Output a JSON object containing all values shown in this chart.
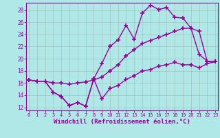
{
  "background_color": "#b0e8e8",
  "grid_color": "#999999",
  "line_color": "#990099",
  "marker": "+",
  "markersize": 4,
  "markeredgewidth": 1.2,
  "linewidth": 1.0,
  "xlabel": "Windchill (Refroidissement éolien,°C)",
  "xlabel_fontsize": 6.5,
  "ytick_values": [
    12,
    14,
    16,
    18,
    20,
    22,
    24,
    26,
    28
  ],
  "xtick_values": [
    0,
    1,
    2,
    3,
    4,
    5,
    6,
    7,
    8,
    9,
    10,
    11,
    12,
    13,
    14,
    15,
    16,
    17,
    18,
    19,
    20,
    21,
    22,
    23
  ],
  "xlim": [
    -0.3,
    23.3
  ],
  "ylim": [
    11.5,
    29.2
  ],
  "line1_x": [
    0,
    1,
    2,
    3,
    4,
    5,
    6,
    7,
    8,
    9,
    10,
    11,
    12,
    13,
    14,
    15,
    16,
    17,
    18,
    19,
    20,
    21,
    22,
    23
  ],
  "line1_y": [
    16.5,
    16.3,
    16.3,
    14.5,
    13.8,
    12.3,
    12.8,
    12.2,
    16.7,
    13.4,
    15.1,
    15.6,
    16.6,
    17.2,
    18.0,
    18.2,
    18.8,
    19.0,
    19.4,
    19.0,
    19.0,
    18.5,
    19.2,
    19.5
  ],
  "line2_x": [
    0,
    1,
    2,
    3,
    4,
    5,
    6,
    7,
    8,
    9,
    10,
    11,
    12,
    13,
    14,
    15,
    16,
    17,
    18,
    19,
    20,
    21,
    22,
    23
  ],
  "line2_y": [
    16.5,
    16.3,
    16.3,
    16.0,
    16.0,
    15.8,
    16.0,
    16.2,
    16.5,
    17.0,
    18.0,
    19.0,
    20.5,
    21.5,
    22.5,
    23.0,
    23.5,
    24.0,
    24.5,
    25.0,
    25.0,
    24.5,
    19.5,
    19.5
  ],
  "line3_x": [
    0,
    1,
    2,
    3,
    4,
    5,
    6,
    7,
    8,
    9,
    10,
    11,
    12,
    13,
    14,
    15,
    16,
    17,
    18,
    19,
    20,
    21,
    22,
    23
  ],
  "line3_y": [
    16.5,
    16.3,
    16.3,
    14.5,
    13.8,
    12.3,
    12.8,
    12.2,
    16.7,
    19.2,
    22.0,
    23.1,
    25.5,
    23.2,
    27.5,
    28.8,
    28.1,
    28.4,
    26.8,
    26.7,
    25.0,
    20.7,
    19.6,
    19.5
  ]
}
